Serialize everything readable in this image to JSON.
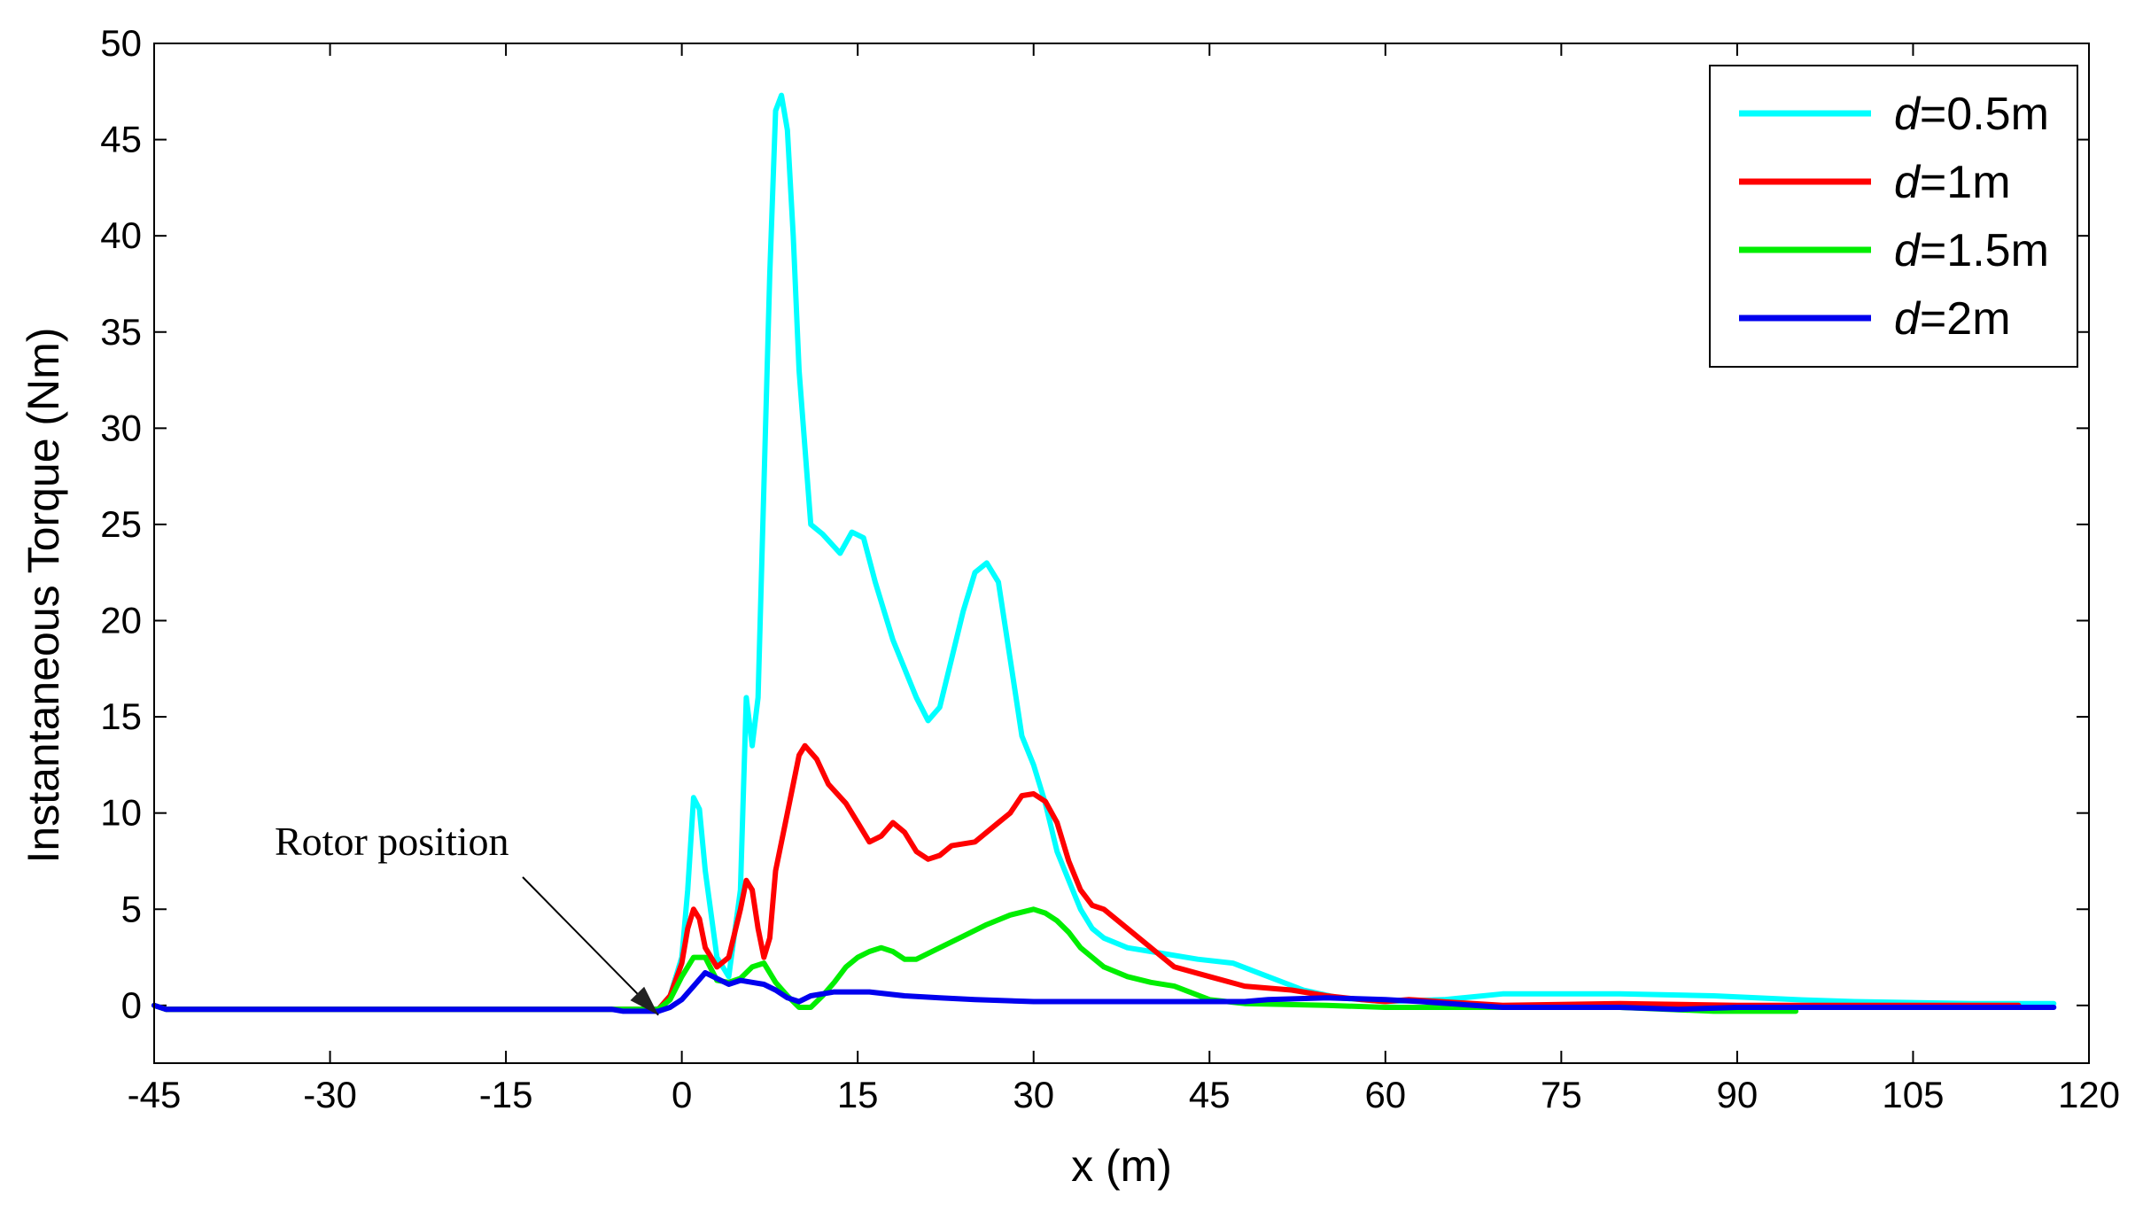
{
  "chart_data": {
    "type": "line",
    "xlabel": "x (m)",
    "ylabel": "Instantaneous Torque (Nm)",
    "xlim": [
      -45,
      120
    ],
    "ylim": [
      -3,
      50
    ],
    "xticks": [
      -45,
      -30,
      -15,
      0,
      15,
      30,
      45,
      60,
      75,
      90,
      105,
      120
    ],
    "yticks": [
      0,
      5,
      10,
      15,
      20,
      25,
      30,
      35,
      40,
      45,
      50
    ],
    "grid": false,
    "legend_position": "top-right",
    "annotation": {
      "text": "Rotor position",
      "points_to": [
        -2,
        -0.5
      ]
    },
    "series": [
      {
        "name_prefix": "d",
        "name_suffix": "=0.5m",
        "color": "#00ffff",
        "points": [
          [
            -45,
            0
          ],
          [
            -44,
            -0.2
          ],
          [
            -2,
            -0.2
          ],
          [
            -1,
            0.5
          ],
          [
            0,
            2.5
          ],
          [
            0.5,
            6
          ],
          [
            1,
            10.8
          ],
          [
            1.5,
            10.2
          ],
          [
            2,
            7
          ],
          [
            3,
            2.5
          ],
          [
            4,
            1.5
          ],
          [
            5,
            6
          ],
          [
            5.5,
            16
          ],
          [
            6,
            13.5
          ],
          [
            6.5,
            16
          ],
          [
            7,
            27
          ],
          [
            7.5,
            38
          ],
          [
            8,
            46.5
          ],
          [
            8.5,
            47.3
          ],
          [
            9,
            45.5
          ],
          [
            9.5,
            40
          ],
          [
            10,
            33
          ],
          [
            10.5,
            29
          ],
          [
            11,
            25
          ],
          [
            12,
            24.5
          ],
          [
            13.5,
            23.5
          ],
          [
            14.5,
            24.6
          ],
          [
            15.5,
            24.3
          ],
          [
            16.5,
            22
          ],
          [
            18,
            19
          ],
          [
            19,
            17.5
          ],
          [
            20,
            16
          ],
          [
            21,
            14.8
          ],
          [
            22,
            15.5
          ],
          [
            23,
            18
          ],
          [
            24,
            20.5
          ],
          [
            25,
            22.5
          ],
          [
            26,
            23
          ],
          [
            27,
            22
          ],
          [
            28,
            18
          ],
          [
            29,
            14
          ],
          [
            30,
            12.5
          ],
          [
            31,
            10.5
          ],
          [
            32,
            8
          ],
          [
            33,
            6.5
          ],
          [
            34,
            5
          ],
          [
            35,
            4
          ],
          [
            36,
            3.5
          ],
          [
            38,
            3
          ],
          [
            40,
            2.8
          ],
          [
            44,
            2.4
          ],
          [
            47,
            2.2
          ],
          [
            50,
            1.5
          ],
          [
            53,
            0.8
          ],
          [
            56,
            0.4
          ],
          [
            60,
            0.2
          ],
          [
            65,
            0.3
          ],
          [
            70,
            0.6
          ],
          [
            80,
            0.6
          ],
          [
            88,
            0.5
          ],
          [
            95,
            0.3
          ],
          [
            100,
            0.2
          ],
          [
            110,
            0.1
          ],
          [
            117,
            0.1
          ]
        ]
      },
      {
        "name_prefix": "d",
        "name_suffix": "=1m",
        "color": "#ff0000",
        "points": [
          [
            -45,
            0
          ],
          [
            -44,
            -0.2
          ],
          [
            -2,
            -0.2
          ],
          [
            -1,
            0.5
          ],
          [
            0,
            2.2
          ],
          [
            0.5,
            4
          ],
          [
            1,
            5
          ],
          [
            1.5,
            4.5
          ],
          [
            2,
            3
          ],
          [
            3,
            2
          ],
          [
            4,
            2.5
          ],
          [
            5,
            5
          ],
          [
            5.5,
            6.5
          ],
          [
            6,
            6
          ],
          [
            6.5,
            4
          ],
          [
            7,
            2.5
          ],
          [
            7.5,
            3.5
          ],
          [
            8,
            7
          ],
          [
            9,
            10
          ],
          [
            10,
            13
          ],
          [
            10.5,
            13.5
          ],
          [
            11.5,
            12.8
          ],
          [
            12.5,
            11.5
          ],
          [
            14,
            10.5
          ],
          [
            15,
            9.5
          ],
          [
            16,
            8.5
          ],
          [
            17,
            8.8
          ],
          [
            18,
            9.5
          ],
          [
            19,
            9
          ],
          [
            20,
            8
          ],
          [
            21,
            7.6
          ],
          [
            22,
            7.8
          ],
          [
            23,
            8.3
          ],
          [
            25,
            8.5
          ],
          [
            27,
            9.5
          ],
          [
            28,
            10
          ],
          [
            29,
            10.9
          ],
          [
            30,
            11
          ],
          [
            31,
            10.6
          ],
          [
            32,
            9.5
          ],
          [
            33,
            7.5
          ],
          [
            34,
            6
          ],
          [
            35,
            5.2
          ],
          [
            36,
            5
          ],
          [
            38,
            4
          ],
          [
            40,
            3
          ],
          [
            42,
            2
          ],
          [
            45,
            1.5
          ],
          [
            48,
            1
          ],
          [
            52,
            0.8
          ],
          [
            55,
            0.5
          ],
          [
            58,
            0.3
          ],
          [
            60,
            0.2
          ],
          [
            62,
            0.3
          ],
          [
            70,
            0
          ],
          [
            80,
            0.1
          ],
          [
            90,
            0
          ],
          [
            100,
            0
          ],
          [
            110,
            0
          ],
          [
            114,
            0
          ]
        ]
      },
      {
        "name_prefix": "d",
        "name_suffix": "=1.5m",
        "color": "#00ee00",
        "points": [
          [
            -45,
            0
          ],
          [
            -44,
            -0.2
          ],
          [
            -2,
            -0.2
          ],
          [
            -1,
            0.3
          ],
          [
            0,
            1.5
          ],
          [
            1,
            2.5
          ],
          [
            2,
            2.5
          ],
          [
            3,
            1.3
          ],
          [
            4,
            1.2
          ],
          [
            5,
            1.4
          ],
          [
            6,
            2
          ],
          [
            7,
            2.2
          ],
          [
            8,
            1.2
          ],
          [
            9,
            0.5
          ],
          [
            10,
            -0.1
          ],
          [
            11,
            -0.1
          ],
          [
            12,
            0.5
          ],
          [
            13,
            1.2
          ],
          [
            14,
            2
          ],
          [
            15,
            2.5
          ],
          [
            16,
            2.8
          ],
          [
            17,
            3
          ],
          [
            18,
            2.8
          ],
          [
            19,
            2.4
          ],
          [
            20,
            2.4
          ],
          [
            22,
            3
          ],
          [
            24,
            3.6
          ],
          [
            26,
            4.2
          ],
          [
            28,
            4.7
          ],
          [
            30,
            5
          ],
          [
            31,
            4.8
          ],
          [
            32,
            4.4
          ],
          [
            33,
            3.8
          ],
          [
            34,
            3
          ],
          [
            35,
            2.5
          ],
          [
            36,
            2
          ],
          [
            38,
            1.5
          ],
          [
            40,
            1.2
          ],
          [
            42,
            1
          ],
          [
            45,
            0.3
          ],
          [
            48,
            0.1
          ],
          [
            55,
            0
          ],
          [
            60,
            -0.1
          ],
          [
            70,
            -0.1
          ],
          [
            80,
            -0.1
          ],
          [
            88,
            -0.3
          ],
          [
            95,
            -0.3
          ]
        ]
      },
      {
        "name_prefix": "d",
        "name_suffix": "=2m",
        "color": "#0000ee",
        "points": [
          [
            -45,
            0
          ],
          [
            -44,
            -0.2
          ],
          [
            -6,
            -0.2
          ],
          [
            -5,
            -0.3
          ],
          [
            -2,
            -0.3
          ],
          [
            -1,
            -0.1
          ],
          [
            0,
            0.3
          ],
          [
            1,
            1
          ],
          [
            2,
            1.7
          ],
          [
            3,
            1.4
          ],
          [
            4,
            1.1
          ],
          [
            5,
            1.3
          ],
          [
            6,
            1.2
          ],
          [
            7,
            1.1
          ],
          [
            8,
            0.8
          ],
          [
            9,
            0.4
          ],
          [
            10,
            0.2
          ],
          [
            11,
            0.5
          ],
          [
            13,
            0.7
          ],
          [
            16,
            0.7
          ],
          [
            19,
            0.5
          ],
          [
            22,
            0.4
          ],
          [
            25,
            0.3
          ],
          [
            30,
            0.2
          ],
          [
            40,
            0.2
          ],
          [
            48,
            0.2
          ],
          [
            50,
            0.3
          ],
          [
            55,
            0.4
          ],
          [
            60,
            0.3
          ],
          [
            63,
            0.2
          ],
          [
            70,
            -0.1
          ],
          [
            80,
            -0.1
          ],
          [
            85,
            -0.2
          ],
          [
            90,
            -0.1
          ],
          [
            100,
            -0.1
          ],
          [
            117,
            -0.1
          ]
        ]
      }
    ]
  }
}
